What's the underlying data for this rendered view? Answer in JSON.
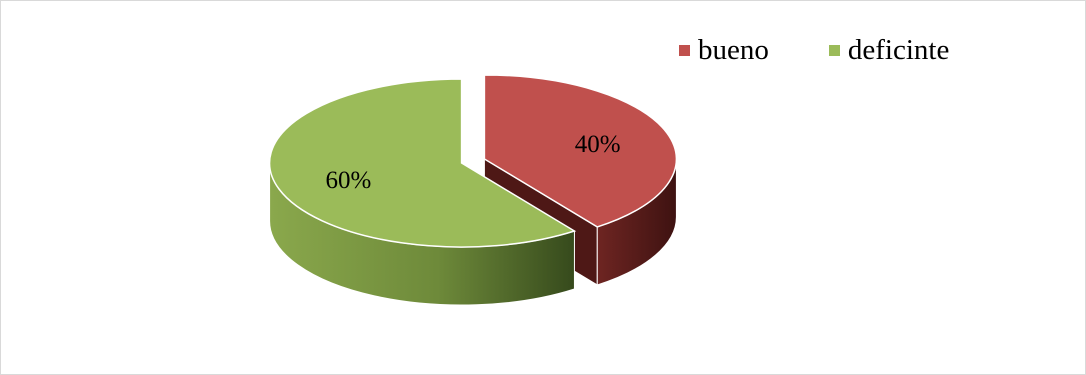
{
  "chart_data": {
    "type": "pie",
    "style": "3d-exploded",
    "title": "",
    "legend_position": "top-right",
    "slices": [
      {
        "name": "bueno",
        "value": 40,
        "label": "40%",
        "color": "#C0504D"
      },
      {
        "name": "deficinte",
        "value": 60,
        "label": "60%",
        "color": "#9BBB59"
      }
    ]
  }
}
